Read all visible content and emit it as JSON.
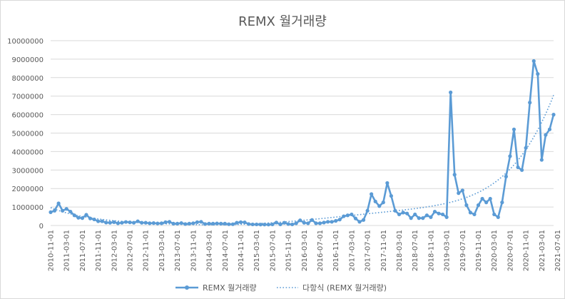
{
  "chart_data": {
    "type": "line",
    "title": "REMX 월거래량",
    "xlabel": "",
    "ylabel": "",
    "ylim": [
      0,
      10000000
    ],
    "y_ticks": [
      "0",
      "1000000",
      "2000000",
      "3000000",
      "4000000",
      "5000000",
      "6000000",
      "7000000",
      "8000000",
      "9000000",
      "10000000"
    ],
    "x_tick_labels": [
      "2010-11-01",
      "2011-03-01",
      "2011-07-01",
      "2011-11-01",
      "2012-03-01",
      "2012-07-01",
      "2012-11-01",
      "2013-03-01",
      "2013-07-01",
      "2013-11-01",
      "2014-03-01",
      "2014-07-01",
      "2014-11-01",
      "2015-03-01",
      "2015-07-01",
      "2015-11-01",
      "2016-03-01",
      "2016-07-01",
      "2016-11-01",
      "2017-03-01",
      "2017-07-01",
      "2017-11-01",
      "2018-03-01",
      "2018-07-01",
      "2018-11-01",
      "2019-03-01",
      "2019-07-01",
      "2019-11-01",
      "2020-03-01",
      "2020-07-01",
      "2020-11-01",
      "2021-03-01",
      "2021-07-01"
    ],
    "grid": "horizontal",
    "legend_position": "bottom",
    "series": [
      {
        "name": "REMX 월거래량",
        "color": "#5b9bd5",
        "style": "solid-with-markers",
        "values": [
          720000,
          800000,
          1200000,
          800000,
          900000,
          750000,
          550000,
          420000,
          400000,
          580000,
          380000,
          330000,
          230000,
          230000,
          160000,
          150000,
          180000,
          120000,
          150000,
          190000,
          170000,
          150000,
          230000,
          150000,
          150000,
          120000,
          130000,
          110000,
          120000,
          180000,
          200000,
          100000,
          100000,
          130000,
          80000,
          100000,
          120000,
          180000,
          200000,
          80000,
          100000,
          100000,
          110000,
          100000,
          100000,
          70000,
          70000,
          150000,
          180000,
          170000,
          80000,
          60000,
          60000,
          50000,
          50000,
          50000,
          60000,
          160000,
          60000,
          150000,
          80000,
          60000,
          120000,
          280000,
          150000,
          120000,
          300000,
          120000,
          120000,
          160000,
          200000,
          200000,
          250000,
          320000,
          500000,
          550000,
          600000,
          380000,
          200000,
          300000,
          800000,
          1700000,
          1300000,
          1050000,
          1250000,
          2300000,
          1600000,
          800000,
          600000,
          700000,
          650000,
          400000,
          600000,
          400000,
          400000,
          550000,
          450000,
          750000,
          650000,
          600000,
          450000,
          7200000,
          2750000,
          1750000,
          1900000,
          1100000,
          700000,
          600000,
          1100000,
          1450000,
          1250000,
          1450000,
          600000,
          450000,
          1250000,
          2650000,
          3750000,
          5200000,
          3150000,
          3000000,
          4200000,
          6650000,
          8900000,
          8200000,
          3550000,
          4900000,
          5200000,
          6000000
        ]
      },
      {
        "name": "다항식 (REMX 월거래량)",
        "color": "#5b9bd5",
        "style": "dotted",
        "type": "polynomial-trend"
      }
    ]
  }
}
